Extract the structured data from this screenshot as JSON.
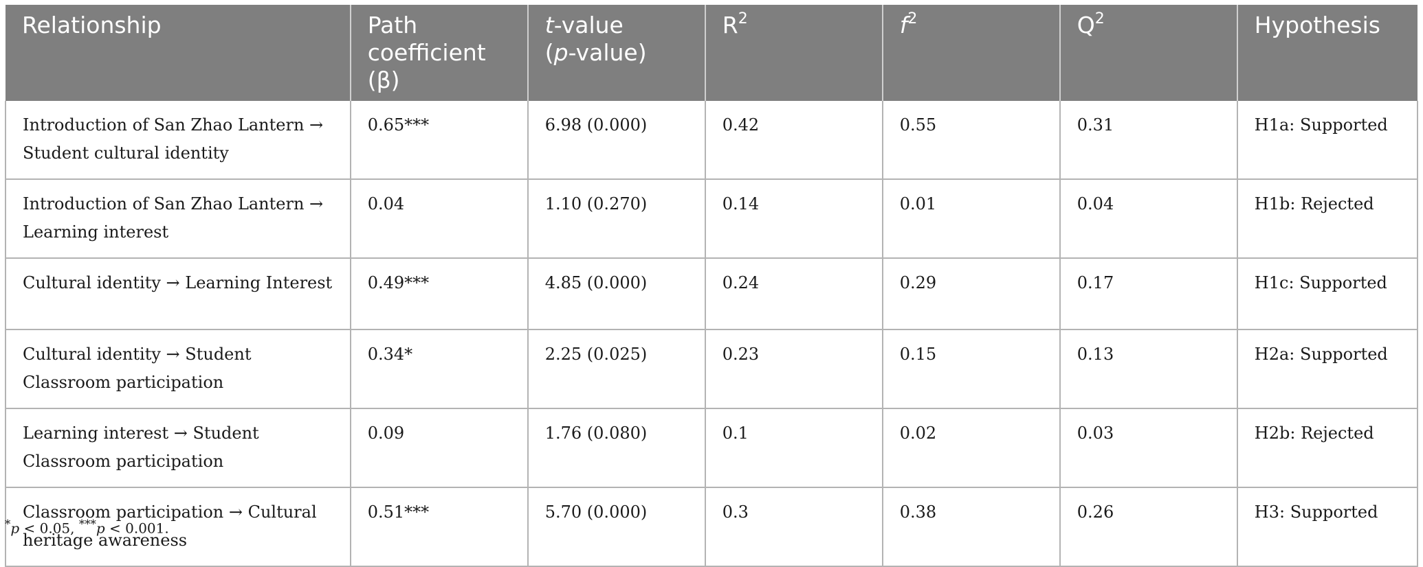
{
  "table": {
    "headers": {
      "relationship": "Relationship",
      "path_line1": "Path",
      "path_line2": "coefficient (β)",
      "t_italic": "t",
      "t_rest": "-value",
      "p_open": "(",
      "p_italic": "p",
      "p_rest": "-value)",
      "r2_base": "R",
      "r2_sup": "2",
      "f2_base": "f",
      "f2_sup": "2",
      "q2_base": "Q",
      "q2_sup": "2",
      "hypothesis": "Hypothesis"
    },
    "rows": [
      {
        "relationship": "Introduction of San Zhao Lantern → Student cultural identity",
        "path": "0.65***",
        "t": "6.98 (0.000)",
        "r2": "0.42",
        "f2": "0.55",
        "q2": "0.31",
        "hypothesis": "H1a: Supported"
      },
      {
        "relationship": "Introduction of San Zhao Lantern → Learning interest",
        "path": "0.04",
        "t": "1.10 (0.270)",
        "r2": "0.14",
        "f2": "0.01",
        "q2": "0.04",
        "hypothesis": "H1b: Rejected"
      },
      {
        "relationship": "Cultural identity → Learning Interest",
        "path": "0.49***",
        "t": "4.85 (0.000)",
        "r2": "0.24",
        "f2": "0.29",
        "q2": "0.17",
        "hypothesis": "H1c: Supported"
      },
      {
        "relationship": "Cultural identity → Student Classroom participation",
        "path": "0.34*",
        "t": "2.25 (0.025)",
        "r2": "0.23",
        "f2": "0.15",
        "q2": "0.13",
        "hypothesis": "H2a: Supported"
      },
      {
        "relationship": "Learning interest → Student Classroom participation",
        "path": "0.09",
        "t": "1.76 (0.080)",
        "r2": "0.1",
        "f2": "0.02",
        "q2": "0.03",
        "hypothesis": "H2b: Rejected"
      },
      {
        "relationship": "Classroom participation → Cultural heritage awareness",
        "path": "0.51***",
        "t": "5.70 (0.000)",
        "r2": "0.3",
        "f2": "0.38",
        "q2": "0.26",
        "hypothesis": "H3: Supported"
      }
    ]
  },
  "footnote": {
    "star1": "*",
    "p1": "p",
    "text1": " < 0.05, ",
    "star3": "***",
    "p2": "p",
    "text2": " < 0.001."
  }
}
